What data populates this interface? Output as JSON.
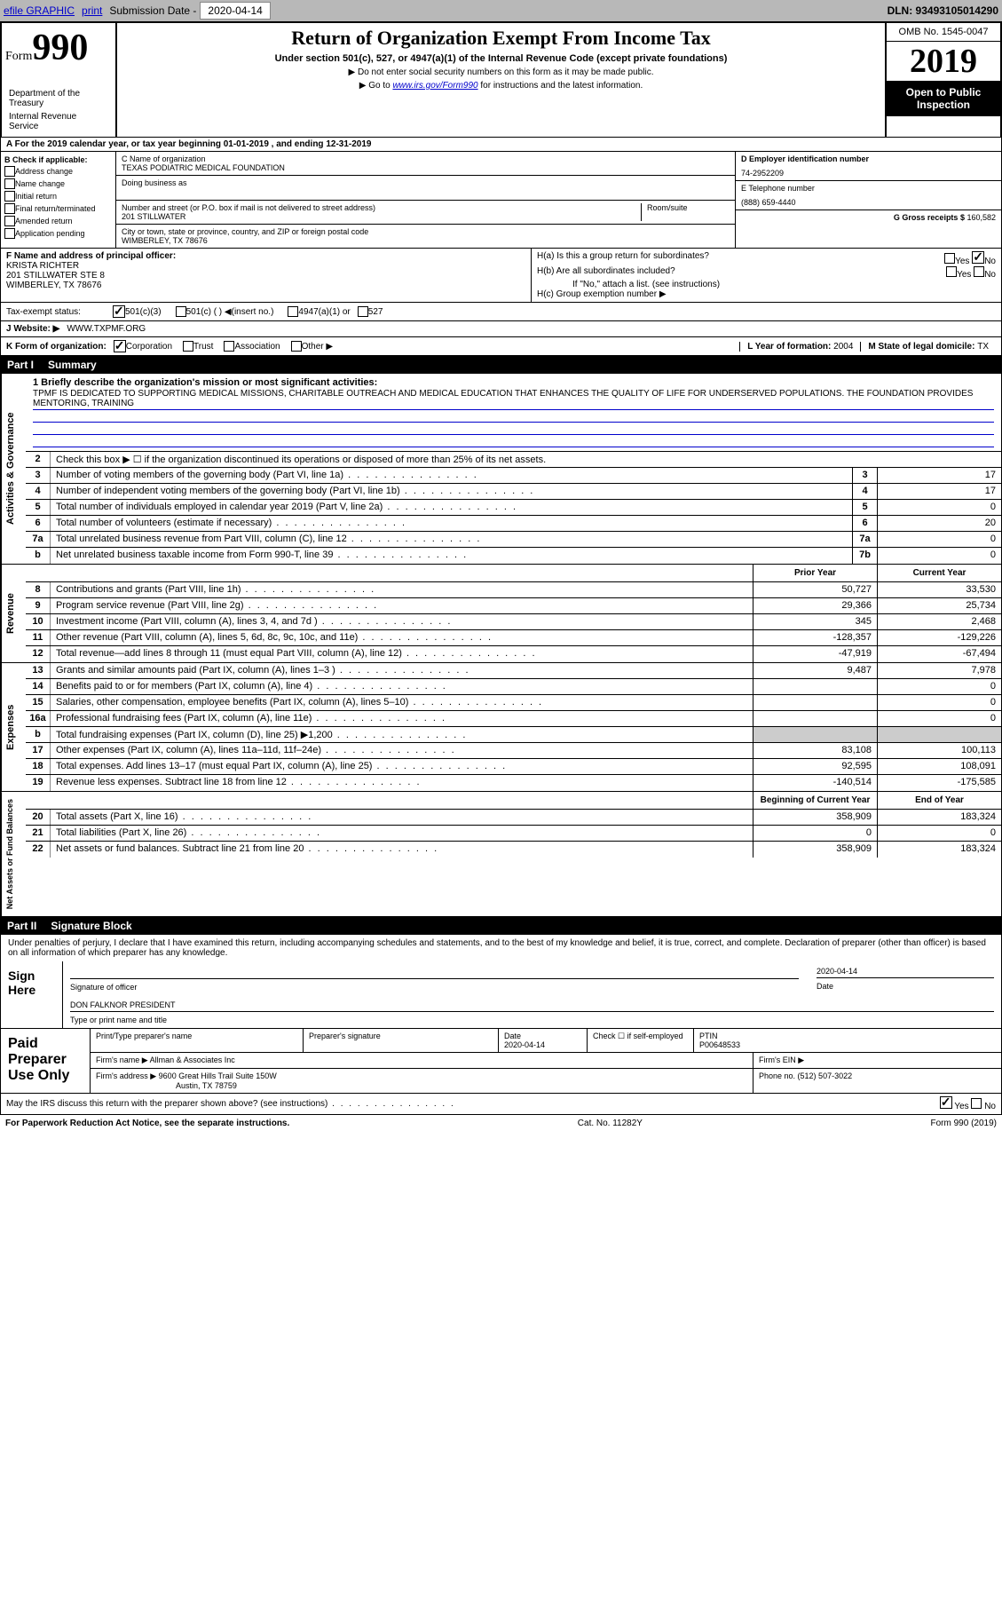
{
  "topbar": {
    "efile": "efile GRAPHIC",
    "print": "print",
    "subdate_label": "Submission Date - ",
    "subdate": "2020-04-14",
    "dln": "DLN: 93493105014290"
  },
  "header": {
    "form_word": "Form",
    "form_num": "990",
    "title": "Return of Organization Exempt From Income Tax",
    "subtitle": "Under section 501(c), 527, or 4947(a)(1) of the Internal Revenue Code (except private foundations)",
    "note1": "▶ Do not enter social security numbers on this form as it may be made public.",
    "note2_pre": "▶ Go to ",
    "note2_link": "www.irs.gov/Form990",
    "note2_post": " for instructions and the latest information.",
    "dept1": "Department of the Treasury",
    "dept2": "Internal Revenue Service",
    "omb": "OMB No. 1545-0047",
    "year": "2019",
    "open": "Open to Public Inspection"
  },
  "row_a": "A For the 2019 calendar year, or tax year beginning 01-01-2019    , and ending 12-31-2019",
  "section_b": {
    "b_label": "B Check if applicable:",
    "checks": [
      "Address change",
      "Name change",
      "Initial return",
      "Final return/terminated",
      "Amended return",
      "Application pending"
    ],
    "c_label": "C Name of organization",
    "org_name": "TEXAS PODIATRIC MEDICAL FOUNDATION",
    "dba_label": "Doing business as",
    "addr_label": "Number and street (or P.O. box if mail is not delivered to street address)",
    "room_label": "Room/suite",
    "addr": "201 STILLWATER",
    "city_label": "City or town, state or province, country, and ZIP or foreign postal code",
    "city": "WIMBERLEY, TX  78676",
    "d_label": "D Employer identification number",
    "ein": "74-2952209",
    "e_label": "E Telephone number",
    "phone": "(888) 659-4440",
    "g_label": "G Gross receipts $ ",
    "gross": "160,582"
  },
  "section_fh": {
    "f_label": "F  Name and address of principal officer:",
    "officer": "KRISTA RICHTER\n201 STILLWATER STE 8\nWIMBERLEY, TX  78676",
    "ha_label": "H(a)  Is this a group return for subordinates?",
    "hb_label": "H(b)  Are all subordinates included?",
    "hb_note": "If \"No,\" attach a list. (see instructions)",
    "hc_label": "H(c)  Group exemption number ▶",
    "yes": "Yes",
    "no": "No"
  },
  "tax_status": {
    "label": "Tax-exempt status:",
    "opt1": "501(c)(3)",
    "opt2": "501(c) (   ) ◀(insert no.)",
    "opt3": "4947(a)(1) or",
    "opt4": "527"
  },
  "website": {
    "label": "J    Website: ▶",
    "url": "WWW.TXPMF.ORG"
  },
  "row_k": {
    "k_label": "K Form of organization:",
    "opts": [
      "Corporation",
      "Trust",
      "Association",
      "Other ▶"
    ],
    "l_label": "L Year of formation: ",
    "l_val": "2004",
    "m_label": "M State of legal domicile: ",
    "m_val": "TX"
  },
  "part1": {
    "label": "Part I",
    "title": "Summary"
  },
  "mission": {
    "q1": "1  Briefly describe the organization's mission or most significant activities:",
    "text": "TPMF IS DEDICATED TO SUPPORTING MEDICAL MISSIONS, CHARITABLE OUTREACH AND MEDICAL EDUCATION THAT ENHANCES THE QUALITY OF LIFE FOR UNDERSERVED POPULATIONS. THE FOUNDATION PROVIDES MENTORING, TRAINING"
  },
  "activities": {
    "q2": "Check this box ▶ ☐  if the organization discontinued its operations or disposed of more than 25% of its net assets.",
    "rows": [
      {
        "n": "3",
        "label": "Number of voting members of the governing body (Part VI, line 1a)",
        "box": "3",
        "val": "17"
      },
      {
        "n": "4",
        "label": "Number of independent voting members of the governing body (Part VI, line 1b)",
        "box": "4",
        "val": "17"
      },
      {
        "n": "5",
        "label": "Total number of individuals employed in calendar year 2019 (Part V, line 2a)",
        "box": "5",
        "val": "0"
      },
      {
        "n": "6",
        "label": "Total number of volunteers (estimate if necessary)",
        "box": "6",
        "val": "20"
      },
      {
        "n": "7a",
        "label": "Total unrelated business revenue from Part VIII, column (C), line 12",
        "box": "7a",
        "val": "0"
      },
      {
        "n": "b",
        "label": "Net unrelated business taxable income from Form 990-T, line 39",
        "box": "7b",
        "val": "0"
      }
    ]
  },
  "revenue": {
    "hdr_prior": "Prior Year",
    "hdr_curr": "Current Year",
    "rows": [
      {
        "n": "8",
        "label": "Contributions and grants (Part VIII, line 1h)",
        "p": "50,727",
        "c": "33,530"
      },
      {
        "n": "9",
        "label": "Program service revenue (Part VIII, line 2g)",
        "p": "29,366",
        "c": "25,734"
      },
      {
        "n": "10",
        "label": "Investment income (Part VIII, column (A), lines 3, 4, and 7d )",
        "p": "345",
        "c": "2,468"
      },
      {
        "n": "11",
        "label": "Other revenue (Part VIII, column (A), lines 5, 6d, 8c, 9c, 10c, and 11e)",
        "p": "-128,357",
        "c": "-129,226"
      },
      {
        "n": "12",
        "label": "Total revenue—add lines 8 through 11 (must equal Part VIII, column (A), line 12)",
        "p": "-47,919",
        "c": "-67,494"
      }
    ]
  },
  "expenses": {
    "rows": [
      {
        "n": "13",
        "label": "Grants and similar amounts paid (Part IX, column (A), lines 1–3 )",
        "p": "9,487",
        "c": "7,978"
      },
      {
        "n": "14",
        "label": "Benefits paid to or for members (Part IX, column (A), line 4)",
        "p": "",
        "c": "0"
      },
      {
        "n": "15",
        "label": "Salaries, other compensation, employee benefits (Part IX, column (A), lines 5–10)",
        "p": "",
        "c": "0"
      },
      {
        "n": "16a",
        "label": "Professional fundraising fees (Part IX, column (A), line 11e)",
        "p": "",
        "c": "0"
      },
      {
        "n": "b",
        "label": "Total fundraising expenses (Part IX, column (D), line 25) ▶1,200",
        "p": "shaded",
        "c": "shaded"
      },
      {
        "n": "17",
        "label": "Other expenses (Part IX, column (A), lines 11a–11d, 11f–24e)",
        "p": "83,108",
        "c": "100,113"
      },
      {
        "n": "18",
        "label": "Total expenses. Add lines 13–17 (must equal Part IX, column (A), line 25)",
        "p": "92,595",
        "c": "108,091"
      },
      {
        "n": "19",
        "label": "Revenue less expenses. Subtract line 18 from line 12",
        "p": "-140,514",
        "c": "-175,585"
      }
    ]
  },
  "netassets": {
    "hdr_begin": "Beginning of Current Year",
    "hdr_end": "End of Year",
    "rows": [
      {
        "n": "20",
        "label": "Total assets (Part X, line 16)",
        "p": "358,909",
        "c": "183,324"
      },
      {
        "n": "21",
        "label": "Total liabilities (Part X, line 26)",
        "p": "0",
        "c": "0"
      },
      {
        "n": "22",
        "label": "Net assets or fund balances. Subtract line 21 from line 20",
        "p": "358,909",
        "c": "183,324"
      }
    ]
  },
  "part2": {
    "label": "Part II",
    "title": "Signature Block"
  },
  "sig": {
    "penalty": "Under penalties of perjury, I declare that I have examined this return, including accompanying schedules and statements, and to the best of my knowledge and belief, it is true, correct, and complete. Declaration of preparer (other than officer) is based on all information of which preparer has any knowledge.",
    "sign_here": "Sign Here",
    "sig_officer": "Signature of officer",
    "date": "2020-04-14",
    "date_label": "Date",
    "name": "DON FALKNOR PRESIDENT",
    "name_label": "Type or print name and title"
  },
  "prep": {
    "label": "Paid Preparer Use Only",
    "h_print": "Print/Type preparer's name",
    "h_sig": "Preparer's signature",
    "h_date": "Date",
    "date": "2020-04-14",
    "h_check": "Check ☐  if self-employed",
    "h_ptin": "PTIN",
    "ptin": "P00648533",
    "firm_label": "Firm's name    ▶",
    "firm": "Allman & Associates Inc",
    "ein_label": "Firm's EIN ▶",
    "addr_label": "Firm's address ▶",
    "addr1": "9600 Great Hills Trail Suite 150W",
    "addr2": "Austin, TX  78759",
    "phone_label": "Phone no. ",
    "phone": "(512) 507-3022"
  },
  "discuss": {
    "q": "May the IRS discuss this return with the preparer shown above? (see instructions)",
    "yes": "Yes",
    "no": "No"
  },
  "footer": {
    "left": "For Paperwork Reduction Act Notice, see the separate instructions.",
    "mid": "Cat. No. 11282Y",
    "right": "Form 990 (2019)"
  },
  "vert": {
    "activities": "Activities & Governance",
    "revenue": "Revenue",
    "expenses": "Expenses",
    "netassets": "Net Assets or Fund Balances"
  }
}
